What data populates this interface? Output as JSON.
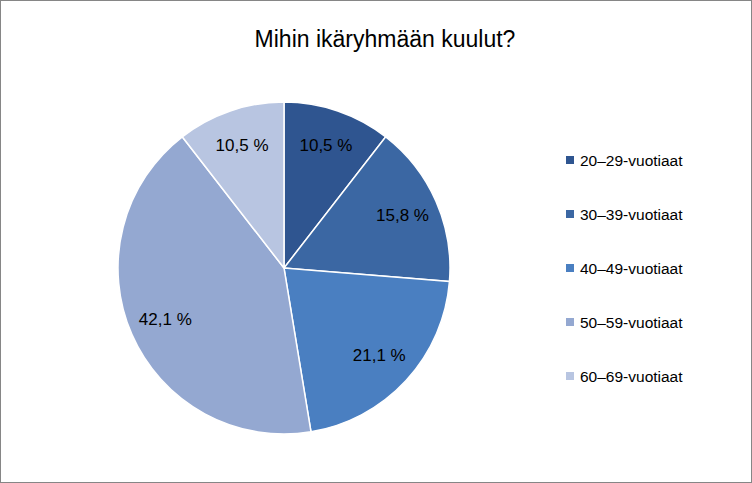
{
  "chart_data": {
    "type": "pie",
    "title": "Mihin ikäryhmään kuulut?",
    "categories": [
      "20–29-vuotiaat",
      "30–39-vuotiaat",
      "40–49-vuotiaat",
      "50–59-vuotiaat",
      "60–69-vuotiaat"
    ],
    "values": [
      10.5,
      15.8,
      21.1,
      42.1,
      10.5
    ],
    "value_labels": [
      "10,5 %",
      "15,8 %",
      "21,1 %",
      "42,1 %",
      "10,5 %"
    ],
    "colors": [
      "#2f5590",
      "#3b67a3",
      "#4a7fc1",
      "#94a8d1",
      "#b8c5e1"
    ],
    "data_labels": true,
    "legend": "right"
  }
}
